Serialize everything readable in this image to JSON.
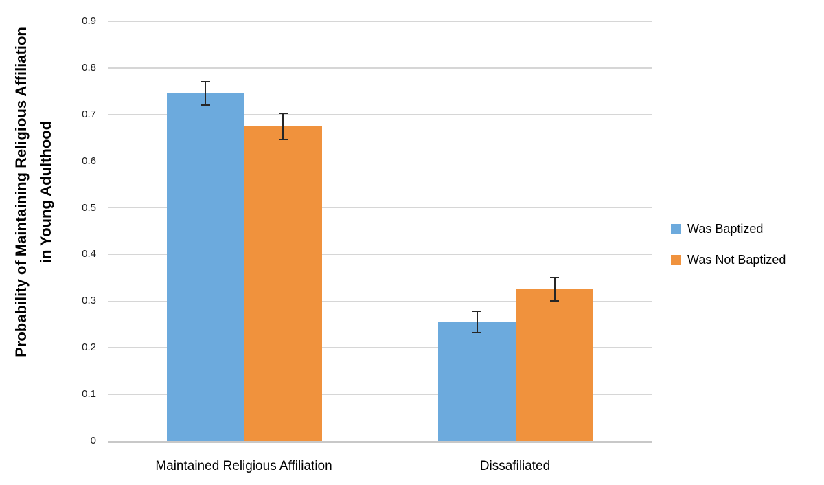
{
  "chart_data": {
    "type": "bar",
    "title": "",
    "categories": [
      "Maintained Religious Affiliation",
      "Dissafiliated"
    ],
    "series": [
      {
        "name": "Was Baptized",
        "color": "#6CAADD",
        "values": [
          0.745,
          0.255
        ],
        "errors": [
          0.025,
          0.023
        ]
      },
      {
        "name": "Was Not Baptized",
        "color": "#F0923D",
        "values": [
          0.675,
          0.325
        ],
        "errors": [
          0.028,
          0.025
        ]
      }
    ],
    "xlabel": "",
    "ylabel": "Probability of Maintaining Religious Affiliation\nin Young Adulthood",
    "ylim": [
      0,
      0.9
    ],
    "yticks": [
      0,
      0.1,
      0.2,
      0.3,
      0.4,
      0.5,
      0.6,
      0.7,
      0.8,
      0.9
    ],
    "ytick_labels": [
      "0",
      "0.1",
      "0.2",
      "0.3",
      "0.4",
      "0.5",
      "0.6",
      "0.7",
      "0.8",
      "0.9"
    ],
    "grid": true,
    "error_bars": true,
    "legend_position": "right"
  },
  "colors": {
    "gridline": "#D6D6D6",
    "axis": "#BFBFBF",
    "error_bar": "#262626",
    "background": "#FFFFFF"
  }
}
